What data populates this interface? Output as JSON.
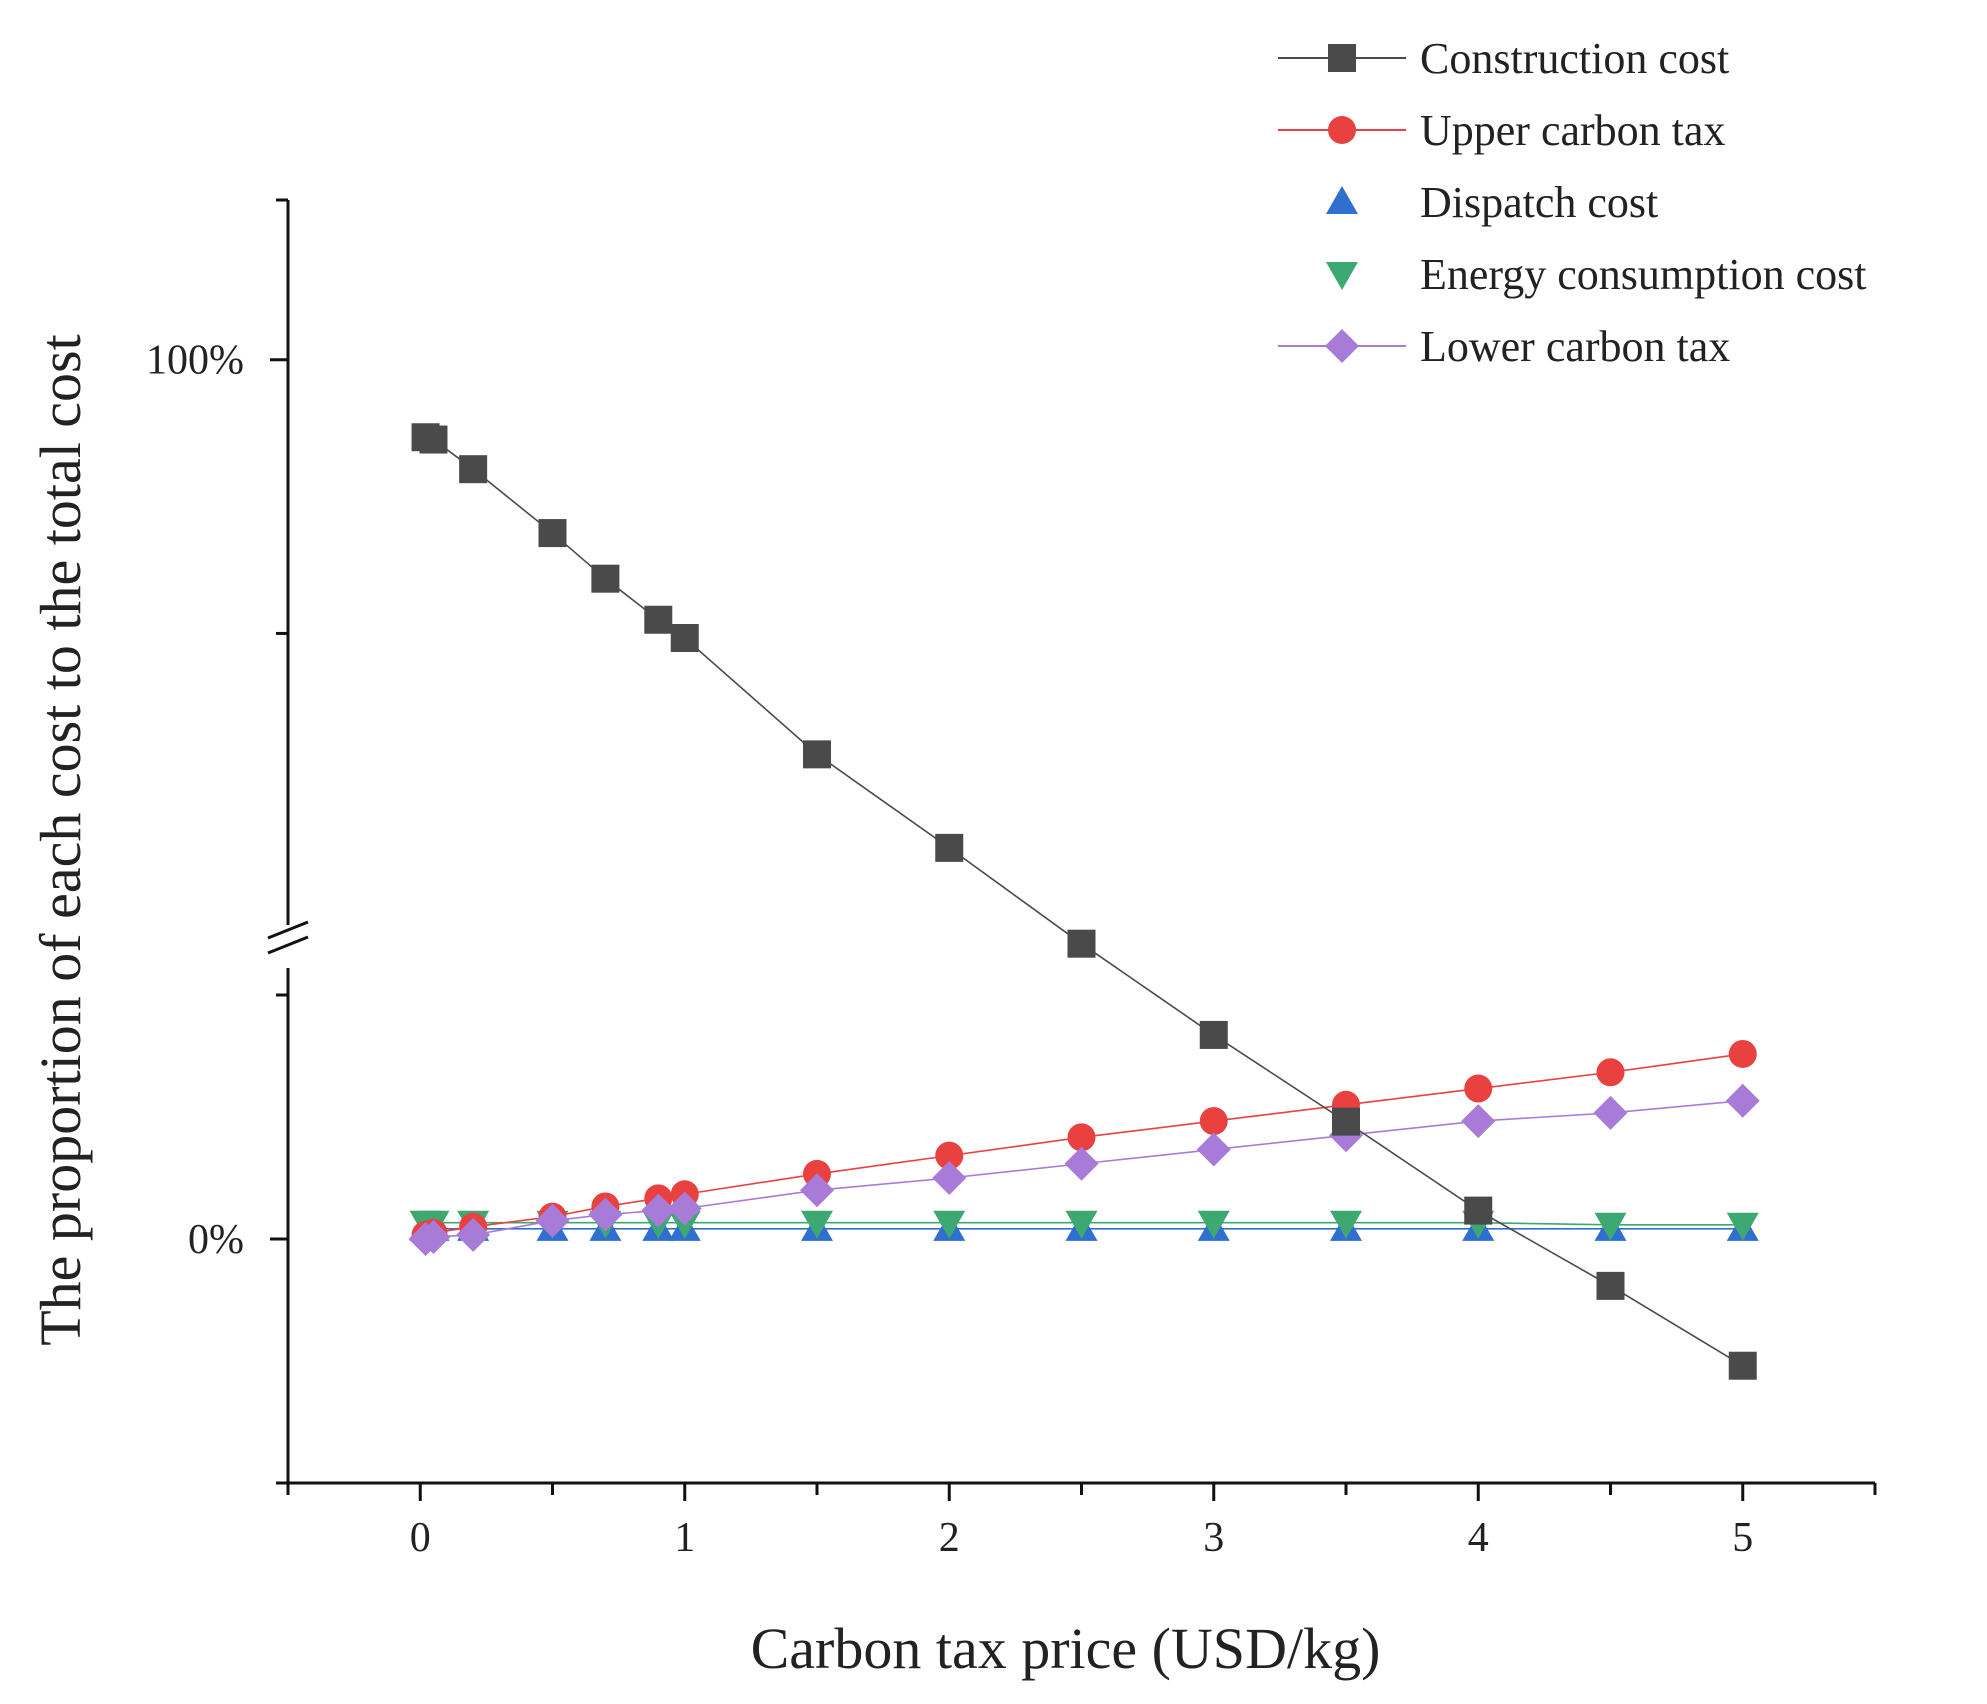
{
  "chart_data": {
    "type": "line",
    "title": "",
    "xlabel": "Carbon tax price (USD/kg)",
    "ylabel": "The proportion of each cost to the total cost",
    "xlim": [
      -0.5,
      5.5
    ],
    "x_ticks": [
      0,
      1,
      2,
      3,
      4,
      5
    ],
    "x_tick_labels": [
      "0",
      "1",
      "2",
      "3",
      "4",
      "5"
    ],
    "y_tick_labels": [
      {
        "value": 100,
        "label": "100%"
      },
      {
        "value": 0,
        "label": "0%"
      }
    ],
    "y_axis_break": true,
    "y_segments": {
      "upper": {
        "range": [
          75,
          107
        ],
        "approx": true
      },
      "lower": {
        "range": [
          -6,
          6
        ],
        "approx": true
      }
    },
    "legend_position": "top-right",
    "x": [
      0.02,
      0.05,
      0.2,
      0.5,
      0.7,
      0.9,
      1.0,
      1.5,
      2.0,
      2.5,
      3.0,
      3.5,
      4.0,
      4.5,
      5.0
    ],
    "series": [
      {
        "name": "Construction cost",
        "marker": "square",
        "color": "#4a4a4a",
        "values": [
          96.6,
          96.5,
          95.2,
          92.4,
          90.4,
          88.6,
          87.8,
          82.7,
          78.6,
          74.4,
          70.4,
          66.6,
          62.7,
          59.4,
          55.9
        ]
      },
      {
        "name": "Upper carbon tax",
        "marker": "circle",
        "color": "#e8413f",
        "values": [
          0.1,
          0.15,
          0.3,
          0.55,
          0.8,
          1.0,
          1.1,
          1.6,
          2.05,
          2.5,
          2.9,
          3.3,
          3.7,
          4.1,
          4.55
        ]
      },
      {
        "name": "Dispatch cost",
        "marker": "triangle-up",
        "color": "#2f6fd0",
        "values": [
          0.25,
          0.25,
          0.25,
          0.25,
          0.25,
          0.25,
          0.25,
          0.25,
          0.25,
          0.25,
          0.25,
          0.25,
          0.25,
          0.25,
          0.25
        ]
      },
      {
        "name": "Energy consumption cost",
        "marker": "triangle-down",
        "color": "#3da872",
        "values": [
          0.4,
          0.4,
          0.4,
          0.4,
          0.4,
          0.4,
          0.4,
          0.4,
          0.4,
          0.4,
          0.4,
          0.4,
          0.4,
          0.35,
          0.35
        ]
      },
      {
        "name": "Lower carbon tax",
        "marker": "diamond",
        "color": "#a87bd9",
        "values": [
          0.0,
          0.05,
          0.1,
          0.45,
          0.6,
          0.7,
          0.75,
          1.2,
          1.5,
          1.85,
          2.2,
          2.55,
          2.9,
          3.1,
          3.4
        ]
      }
    ]
  }
}
